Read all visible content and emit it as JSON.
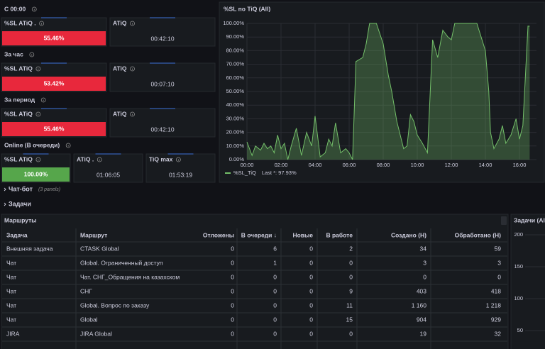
{
  "sections": [
    {
      "label": "С 00:00",
      "panels": [
        {
          "title": "%SL ATiQ .",
          "value": "55.46%",
          "color": "#e8283c"
        },
        {
          "title": "ATiQ",
          "value": "00:42:10"
        }
      ]
    },
    {
      "label": "За час",
      "panels": [
        {
          "title": "%SL ATiQ",
          "value": "53.42%",
          "color": "#e8283c"
        },
        {
          "title": "ATiQ",
          "value": "00:07:10"
        }
      ]
    },
    {
      "label": "За период",
      "panels": [
        {
          "title": "%SL ATiQ",
          "value": "55.46%",
          "color": "#e8283c"
        },
        {
          "title": "ATiQ",
          "value": "00:42:10"
        }
      ]
    },
    {
      "label": "Online (В очереди)",
      "panels": [
        {
          "title": "%SL ATiQ",
          "value": "100.00%",
          "color": "#56a64b"
        },
        {
          "title": "ATiQ .",
          "value": "01:06:05"
        },
        {
          "title": "TiQ max",
          "value": "01:53:19"
        }
      ]
    }
  ],
  "chart_data": {
    "type": "line",
    "title": "%SL по TiQ (All)",
    "x": [
      0,
      0.3,
      0.5,
      0.8,
      1.0,
      1.2,
      1.4,
      1.6,
      1.8,
      2.0,
      2.2,
      2.4,
      2.6,
      2.9,
      3.2,
      3.5,
      3.8,
      4.0,
      4.3,
      4.6,
      4.8,
      5.0,
      5.2,
      5.5,
      5.8,
      6.0,
      6.2,
      6.4,
      6.8,
      7.0,
      7.2,
      7.6,
      8.0,
      8.3,
      8.5,
      8.8,
      9.0,
      9.2,
      9.4,
      9.6,
      9.8,
      10.0,
      10.3,
      10.6,
      10.9,
      11.2,
      11.5,
      11.8,
      12.0,
      12.2,
      13.0,
      13.5,
      14.0,
      14.2,
      14.3,
      14.5,
      14.8,
      15.0,
      15.2,
      15.5,
      15.8,
      16.0,
      16.2,
      16.5,
      16.6
    ],
    "series": [
      {
        "name": "%SL_TiQ",
        "color": "#73bf69",
        "values": [
          13,
          3,
          10,
          7,
          12,
          8,
          10,
          5,
          18,
          8,
          12,
          0,
          10,
          23,
          3,
          20,
          10,
          32,
          2,
          5,
          15,
          10,
          27,
          5,
          8,
          5,
          0,
          72,
          75,
          85,
          100,
          100,
          85,
          62,
          50,
          28,
          18,
          8,
          10,
          33,
          28,
          18,
          12,
          5,
          88,
          75,
          95,
          90,
          88,
          100,
          100,
          100,
          80,
          50,
          20,
          8,
          15,
          25,
          12,
          18,
          30,
          15,
          25,
          98,
          97.93
        ]
      }
    ],
    "legend_note": "Last *: 97.93%",
    "xlim": [
      0,
      17
    ],
    "ylim": [
      0,
      100
    ],
    "xticks": [
      {
        "value": 0,
        "label": "00:00"
      },
      {
        "value": 2,
        "label": "02:00"
      },
      {
        "value": 4,
        "label": "04:00"
      },
      {
        "value": 6,
        "label": "06:00"
      },
      {
        "value": 8,
        "label": "08:00"
      },
      {
        "value": 10,
        "label": "10:00"
      },
      {
        "value": 12,
        "label": "12:00"
      },
      {
        "value": 14,
        "label": "14:00"
      },
      {
        "value": 16,
        "label": "16:00"
      }
    ],
    "yticks": [
      {
        "value": 0,
        "label": "0.00%"
      },
      {
        "value": 10,
        "label": "10.00%"
      },
      {
        "value": 20,
        "label": "20.00%"
      },
      {
        "value": 30,
        "label": "30.00%"
      },
      {
        "value": 40,
        "label": "40.00%"
      },
      {
        "value": 50,
        "label": "50.00%"
      },
      {
        "value": 60,
        "label": "60.00%"
      },
      {
        "value": 70,
        "label": "70.00%"
      },
      {
        "value": 80,
        "label": "80.00%"
      },
      {
        "value": 90,
        "label": "90.00%"
      },
      {
        "value": 100,
        "label": "100.00%"
      }
    ],
    "grid": true
  },
  "rows": [
    {
      "title": "Чат-бот",
      "note": "(3 panels)"
    },
    {
      "title": "Задачи"
    }
  ],
  "table": {
    "title": "Маршруты",
    "columns": [
      "Задача",
      "Маршрут",
      "Отложены",
      "В очереди ↓",
      "Новые",
      "В работе",
      "Создано (Н)",
      "Обработано (Н)"
    ],
    "rows": [
      [
        "Внешняя задача",
        "CTASK Global",
        0,
        6,
        0,
        2,
        34,
        59
      ],
      [
        "Чат",
        "Global. Ограниченный доступ",
        0,
        1,
        0,
        0,
        3,
        3
      ],
      [
        "Чат",
        "Чат. СНГ_Обращения на казахском",
        0,
        0,
        0,
        0,
        0,
        0
      ],
      [
        "Чат",
        "СНГ",
        0,
        0,
        0,
        9,
        403,
        418
      ],
      [
        "Чат",
        "Global. Вопрос по заказу",
        0,
        0,
        0,
        11,
        "1 160",
        "1 218"
      ],
      [
        "Чат",
        "Global",
        0,
        0,
        0,
        15,
        904,
        929
      ],
      [
        "JIRA",
        "JIRA Global",
        0,
        0,
        0,
        0,
        19,
        32
      ]
    ]
  },
  "side_panel": {
    "title": "Задачи (All",
    "ylim": [
      20,
      210
    ],
    "yticks": [
      200,
      150,
      100,
      50
    ]
  }
}
